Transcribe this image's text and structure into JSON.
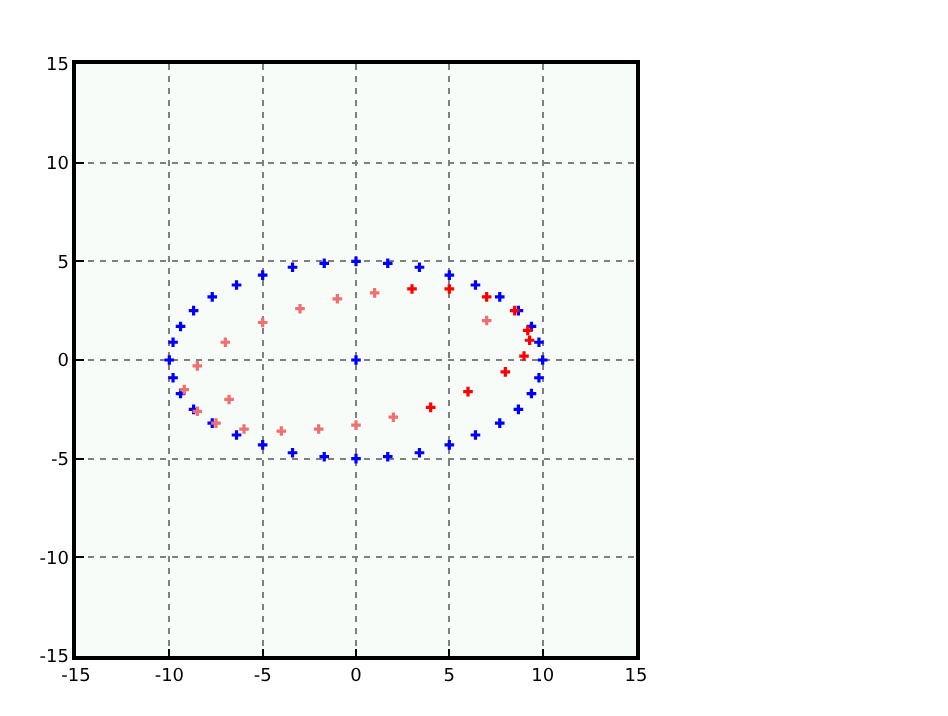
{
  "chart_data": {
    "type": "scatter",
    "xlim": [
      -15,
      15
    ],
    "ylim": [
      -15,
      15
    ],
    "xticks": [
      -15,
      -10,
      -5,
      0,
      5,
      10,
      15
    ],
    "yticks": [
      -15,
      -10,
      -5,
      0,
      5,
      10,
      15
    ],
    "grid": true,
    "marker": "cross",
    "series": [
      {
        "color": "#0000ff",
        "x": [
          10,
          9.8,
          9.4,
          8.7,
          7.7,
          6.4,
          5,
          3.4,
          1.7,
          0,
          -1.7,
          -3.4,
          -5,
          -6.4,
          -7.7,
          -8.7,
          -9.4,
          -9.8,
          -10,
          -9.8,
          -9.4,
          -8.7,
          -7.7,
          -6.4,
          -5,
          -3.4,
          -1.7,
          0,
          1.7,
          3.4,
          5,
          6.4,
          7.7,
          8.7,
          9.4,
          9.8
        ],
        "values": [
          0,
          0.9,
          1.7,
          2.5,
          3.2,
          3.8,
          4.3,
          4.7,
          4.9,
          5,
          4.9,
          4.7,
          4.3,
          3.8,
          3.2,
          2.5,
          1.7,
          0.9,
          0,
          -0.9,
          -1.7,
          -2.5,
          -3.2,
          -3.8,
          -4.3,
          -4.7,
          -4.9,
          -5,
          -4.9,
          -4.7,
          -4.3,
          -3.8,
          -3.2,
          -2.5,
          -1.7,
          -0.9
        ]
      },
      {
        "color": "#0000ff",
        "x": [
          0
        ],
        "values": [
          0
        ]
      },
      {
        "color": "#f07070",
        "x": [
          -9.2,
          -8.5,
          -7,
          -5,
          -3,
          -1,
          1,
          2,
          0,
          -2,
          -4,
          -6,
          -7.5,
          -8.5,
          7,
          -6.8
        ],
        "values": [
          -1.5,
          -0.3,
          0.9,
          1.9,
          2.6,
          3.1,
          3.4,
          -2.9,
          -3.3,
          -3.5,
          -3.6,
          -3.5,
          -3.2,
          -2.6,
          2,
          -2
        ]
      },
      {
        "color": "#ff0000",
        "x": [
          3,
          5,
          7,
          8.5,
          9.2,
          9.3,
          9,
          8,
          6,
          4
        ],
        "values": [
          3.6,
          3.6,
          3.2,
          2.5,
          1.5,
          1,
          0.2,
          -0.6,
          -1.6,
          -2.4
        ]
      }
    ]
  }
}
